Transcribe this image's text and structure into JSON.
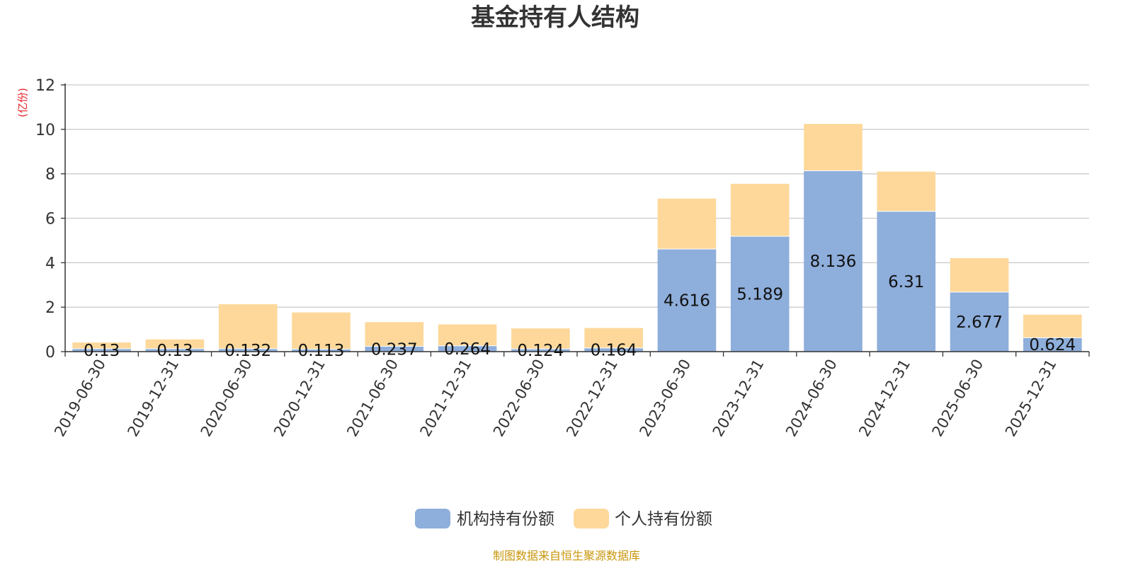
{
  "chart_data": {
    "type": "bar",
    "stacked": true,
    "title": "基金持有人结构",
    "unit_label": "(亿份)",
    "categories": [
      "2019-06-30",
      "2019-12-31",
      "2020-06-30",
      "2020-12-31",
      "2021-06-30",
      "2021-12-31",
      "2022-06-30",
      "2022-12-31",
      "2023-06-30",
      "2023-12-31",
      "2024-06-30",
      "2024-12-31",
      "2025-06-30",
      "2025-12-31"
    ],
    "series": [
      {
        "name": "机构持有份额",
        "color": "#8eaedb",
        "values": [
          0.13,
          0.13,
          0.132,
          0.113,
          0.237,
          0.264,
          0.124,
          0.164,
          4.616,
          5.189,
          8.136,
          6.31,
          2.677,
          0.624
        ],
        "labels": [
          "0.13",
          "0.13",
          "0.132",
          "0.113",
          "0.237",
          "0.264",
          "0.124",
          "0.164",
          "4.616",
          "5.189",
          "8.136",
          "6.31",
          "2.677",
          "0.624"
        ]
      },
      {
        "name": "个人持有份额",
        "color": "#fdd89a",
        "values": [
          0.28,
          0.42,
          2.0,
          1.65,
          1.09,
          0.96,
          0.92,
          0.9,
          2.27,
          2.36,
          2.11,
          1.79,
          1.53,
          1.04
        ]
      }
    ],
    "ylim": [
      0,
      12
    ],
    "yticks": [
      0,
      2,
      4,
      6,
      8,
      10,
      12
    ],
    "grid": true,
    "legend_position": "bottom-center",
    "colors": {
      "axis": "#333333",
      "grid": "#cccccc",
      "unit": "#e8262b",
      "source": "#c8960c"
    }
  },
  "source_note": "制图数据来自恒生聚源数据库"
}
